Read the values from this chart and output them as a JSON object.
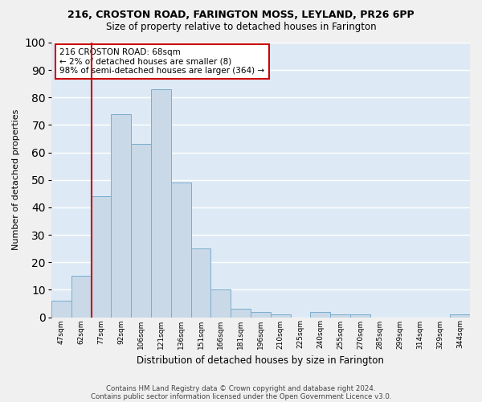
{
  "title1": "216, CROSTON ROAD, FARINGTON MOSS, LEYLAND, PR26 6PP",
  "title2": "Size of property relative to detached houses in Farington",
  "xlabel": "Distribution of detached houses by size in Farington",
  "ylabel": "Number of detached properties",
  "bar_labels": [
    "47sqm",
    "62sqm",
    "77sqm",
    "92sqm",
    "106sqm",
    "121sqm",
    "136sqm",
    "151sqm",
    "166sqm",
    "181sqm",
    "196sqm",
    "210sqm",
    "225sqm",
    "240sqm",
    "255sqm",
    "270sqm",
    "285sqm",
    "299sqm",
    "314sqm",
    "329sqm",
    "344sqm"
  ],
  "bar_values": [
    6,
    15,
    44,
    74,
    63,
    83,
    49,
    25,
    10,
    3,
    2,
    1,
    0,
    2,
    1,
    1,
    0,
    0,
    0,
    0,
    1
  ],
  "bar_color": "#c9d9e8",
  "bar_edge_color": "#7aadcc",
  "bg_color": "#ddeaf5",
  "grid_color": "#ffffff",
  "vline_color": "#cc0000",
  "annotation_text": "216 CROSTON ROAD: 68sqm\n← 2% of detached houses are smaller (8)\n98% of semi-detached houses are larger (364) →",
  "annotation_box_color": "#ffffff",
  "annotation_box_edge": "#cc0000",
  "footer1": "Contains HM Land Registry data © Crown copyright and database right 2024.",
  "footer2": "Contains public sector information licensed under the Open Government Licence v3.0.",
  "fig_bg": "#f0f0f0",
  "ylim": [
    0,
    100
  ],
  "yticks": [
    0,
    10,
    20,
    30,
    40,
    50,
    60,
    70,
    80,
    90,
    100
  ]
}
